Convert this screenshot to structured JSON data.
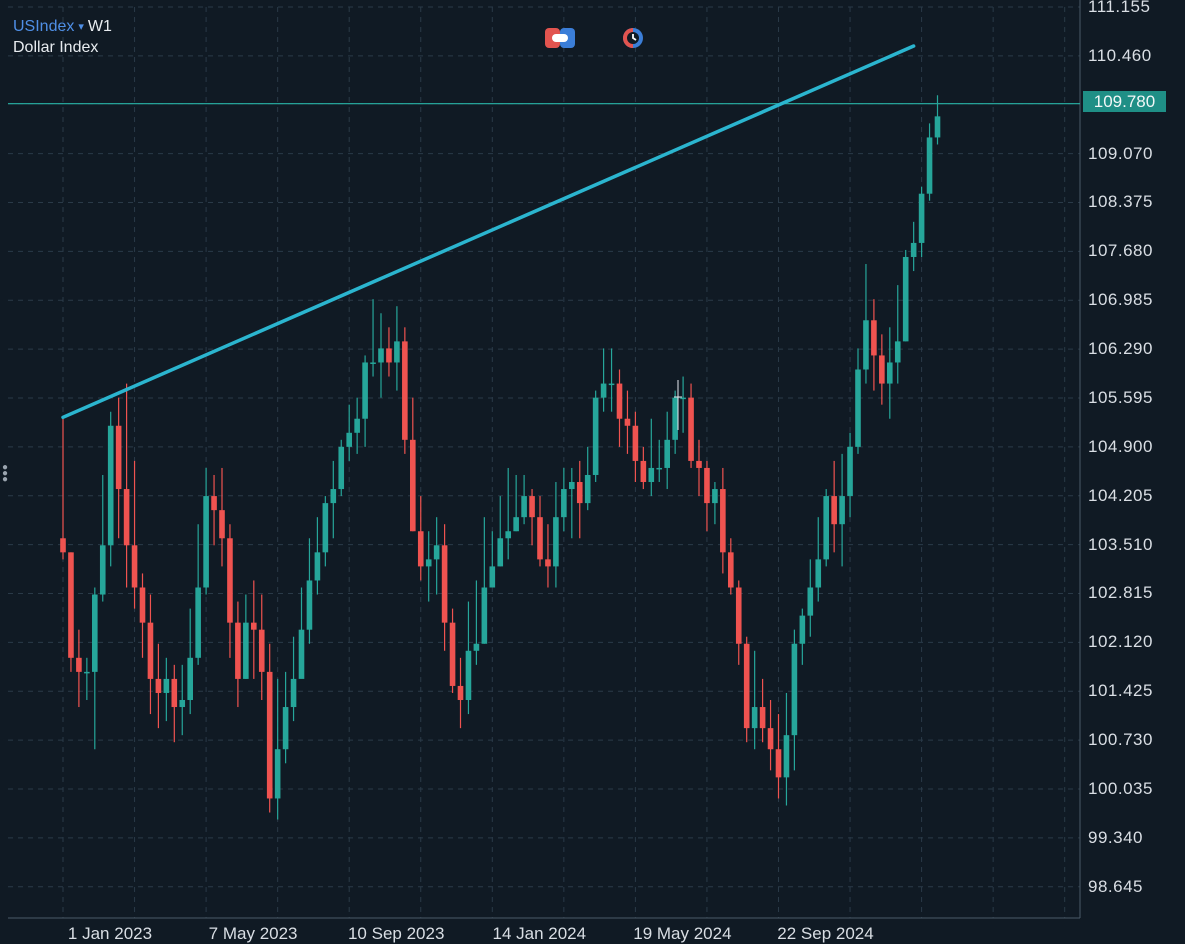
{
  "header": {
    "symbol": "USIndex",
    "dropdown_glyph": "▾",
    "timeframe": "W1",
    "instrument_name": "Dollar Index"
  },
  "toolbar": {
    "icons": [
      "toggle-icon",
      "clock-icon"
    ]
  },
  "colors": {
    "background": "#101a24",
    "bull": "#26a69a",
    "bear": "#ef5350",
    "trendline": "#2bb5cf",
    "price_line": "#28b3a6",
    "grid": "#2a3a48"
  },
  "current_price": "109.780",
  "chart_data": {
    "type": "candlestick",
    "timeframe": "weekly",
    "ylim": [
      98.2,
      111.155
    ],
    "y_ticks": [
      "111.155",
      "110.460",
      "109.780",
      "109.070",
      "108.375",
      "107.680",
      "106.985",
      "106.290",
      "105.595",
      "104.900",
      "104.205",
      "103.510",
      "102.815",
      "102.120",
      "101.425",
      "100.730",
      "100.035",
      "99.340",
      "98.645"
    ],
    "x_ticks": [
      "1 Jan 2023",
      "7 May 2023",
      "10 Sep 2023",
      "14 Jan 2024",
      "19 May 2024",
      "22 Sep 2024"
    ],
    "grid": true,
    "trendline": {
      "from": {
        "date": "2023-01-01",
        "price": 105.32
      },
      "to": {
        "date": "2025-01-19",
        "price": 110.6
      }
    },
    "horizontal_line": 109.78,
    "candles": [
      [
        103.6,
        103.4,
        105.3,
        103.3
      ],
      [
        103.4,
        101.9,
        103.4,
        101.7
      ],
      [
        101.9,
        101.7,
        102.3,
        101.2
      ],
      [
        101.7,
        101.7,
        101.9,
        101.3
      ],
      [
        101.7,
        102.8,
        102.9,
        100.6
      ],
      [
        102.8,
        103.5,
        104.5,
        102.7
      ],
      [
        103.5,
        105.2,
        105.4,
        103.2
      ],
      [
        105.2,
        104.3,
        105.6,
        103.6
      ],
      [
        104.3,
        103.5,
        105.8,
        102.9
      ],
      [
        103.5,
        102.9,
        104.7,
        102.6
      ],
      [
        102.9,
        102.4,
        103.1,
        101.9
      ],
      [
        102.4,
        101.6,
        102.8,
        101.1
      ],
      [
        101.6,
        101.4,
        102.1,
        100.9
      ],
      [
        101.4,
        101.6,
        101.9,
        101.0
      ],
      [
        101.6,
        101.2,
        101.8,
        100.7
      ],
      [
        101.2,
        101.3,
        101.8,
        100.8
      ],
      [
        101.3,
        101.9,
        102.6,
        101.1
      ],
      [
        101.9,
        102.9,
        103.8,
        101.8
      ],
      [
        102.9,
        104.2,
        104.6,
        102.8
      ],
      [
        104.2,
        104.0,
        104.5,
        103.5
      ],
      [
        104.0,
        103.6,
        104.6,
        103.2
      ],
      [
        103.6,
        102.4,
        103.8,
        101.9
      ],
      [
        102.4,
        101.6,
        102.7,
        101.2
      ],
      [
        101.6,
        102.4,
        102.8,
        101.6
      ],
      [
        102.4,
        102.3,
        103.0,
        101.6
      ],
      [
        102.3,
        101.7,
        102.8,
        101.3
      ],
      [
        101.7,
        99.9,
        102.1,
        99.7
      ],
      [
        99.9,
        100.6,
        101.6,
        99.6
      ],
      [
        100.6,
        101.2,
        101.7,
        100.4
      ],
      [
        101.2,
        101.6,
        102.2,
        101.0
      ],
      [
        101.6,
        102.3,
        102.9,
        101.8
      ],
      [
        102.3,
        103.0,
        103.6,
        102.1
      ],
      [
        103.0,
        103.4,
        103.9,
        102.8
      ],
      [
        103.4,
        104.1,
        104.2,
        103.2
      ],
      [
        104.1,
        104.3,
        104.7,
        103.6
      ],
      [
        104.3,
        104.9,
        105.0,
        104.2
      ],
      [
        104.9,
        105.1,
        105.5,
        104.7
      ],
      [
        105.1,
        105.3,
        105.6,
        104.8
      ],
      [
        105.3,
        106.1,
        106.2,
        104.9
      ],
      [
        106.1,
        106.1,
        107.0,
        105.9
      ],
      [
        106.1,
        106.3,
        106.8,
        105.6
      ],
      [
        106.3,
        106.1,
        106.6,
        105.9
      ],
      [
        106.1,
        106.4,
        106.9,
        105.7
      ],
      [
        106.4,
        105.0,
        106.6,
        104.8
      ],
      [
        105.0,
        103.7,
        105.6,
        103.7
      ],
      [
        103.7,
        103.2,
        104.2,
        103.0
      ],
      [
        103.2,
        103.3,
        103.7,
        102.7
      ],
      [
        103.3,
        103.5,
        103.9,
        102.8
      ],
      [
        103.5,
        102.4,
        103.8,
        102.0
      ],
      [
        102.4,
        101.5,
        102.6,
        101.4
      ],
      [
        101.5,
        101.3,
        101.9,
        100.9
      ],
      [
        101.3,
        102.0,
        102.7,
        101.1
      ],
      [
        102.0,
        102.1,
        103.0,
        101.8
      ],
      [
        102.1,
        102.9,
        103.9,
        102.1
      ],
      [
        102.9,
        103.2,
        103.7,
        102.9
      ],
      [
        103.2,
        103.6,
        104.2,
        103.2
      ],
      [
        103.6,
        103.7,
        104.6,
        103.3
      ],
      [
        103.7,
        103.9,
        104.5,
        103.7
      ],
      [
        103.9,
        104.2,
        104.5,
        103.8
      ],
      [
        104.2,
        103.9,
        104.3,
        103.5
      ],
      [
        103.9,
        103.3,
        104.2,
        103.2
      ],
      [
        103.3,
        103.2,
        103.8,
        102.9
      ],
      [
        103.2,
        103.9,
        104.4,
        102.9
      ],
      [
        103.9,
        104.3,
        104.6,
        103.7
      ],
      [
        104.3,
        104.4,
        104.6,
        103.6
      ],
      [
        104.4,
        104.1,
        104.7,
        103.6
      ],
      [
        104.1,
        104.5,
        104.9,
        104.0
      ],
      [
        104.5,
        105.6,
        105.7,
        104.4
      ],
      [
        105.6,
        105.8,
        106.3,
        105.4
      ],
      [
        105.8,
        105.8,
        106.3,
        105.4
      ],
      [
        105.8,
        105.3,
        106.0,
        104.9
      ],
      [
        105.3,
        105.2,
        105.7,
        104.8
      ],
      [
        105.2,
        104.7,
        105.4,
        104.4
      ],
      [
        104.7,
        104.4,
        104.9,
        104.3
      ],
      [
        104.4,
        104.6,
        105.3,
        104.2
      ],
      [
        104.6,
        104.6,
        105.0,
        104.4
      ],
      [
        104.6,
        105.0,
        105.4,
        104.3
      ],
      [
        105.0,
        105.6,
        105.7,
        104.8
      ],
      [
        105.6,
        105.6,
        105.9,
        105.1
      ],
      [
        105.6,
        104.7,
        105.8,
        104.6
      ],
      [
        104.7,
        104.6,
        105.0,
        104.2
      ],
      [
        104.6,
        104.1,
        104.7,
        103.7
      ],
      [
        104.1,
        104.3,
        104.4,
        103.8
      ],
      [
        104.3,
        103.4,
        104.6,
        103.1
      ],
      [
        103.4,
        102.9,
        103.6,
        102.8
      ],
      [
        102.9,
        102.1,
        103.0,
        101.8
      ],
      [
        102.1,
        100.9,
        102.2,
        100.7
      ],
      [
        100.9,
        101.2,
        102.0,
        100.6
      ],
      [
        101.2,
        100.9,
        101.6,
        100.7
      ],
      [
        100.9,
        100.6,
        101.3,
        100.3
      ],
      [
        100.6,
        100.2,
        101.1,
        99.9
      ],
      [
        100.2,
        100.8,
        101.4,
        99.8
      ],
      [
        100.8,
        102.1,
        102.3,
        100.3
      ],
      [
        102.1,
        102.5,
        102.6,
        101.8
      ],
      [
        102.5,
        102.9,
        103.3,
        102.2
      ],
      [
        102.9,
        103.3,
        103.9,
        102.7
      ],
      [
        103.3,
        104.2,
        104.3,
        103.2
      ],
      [
        104.2,
        103.8,
        104.7,
        103.4
      ],
      [
        103.8,
        104.2,
        104.8,
        103.2
      ],
      [
        104.2,
        104.9,
        105.1,
        103.9
      ],
      [
        104.9,
        106.0,
        106.3,
        104.8
      ],
      [
        106.0,
        106.7,
        107.5,
        105.8
      ],
      [
        106.7,
        106.2,
        107.0,
        105.7
      ],
      [
        106.2,
        105.8,
        106.5,
        105.5
      ],
      [
        105.8,
        106.1,
        106.6,
        105.3
      ],
      [
        106.1,
        106.4,
        107.2,
        105.8
      ],
      [
        106.4,
        107.6,
        107.7,
        106.4
      ],
      [
        107.6,
        107.8,
        108.1,
        107.4
      ],
      [
        107.8,
        108.5,
        108.6,
        107.6
      ],
      [
        108.5,
        109.3,
        109.5,
        108.4
      ],
      [
        109.3,
        109.6,
        109.9,
        109.2
      ]
    ]
  }
}
